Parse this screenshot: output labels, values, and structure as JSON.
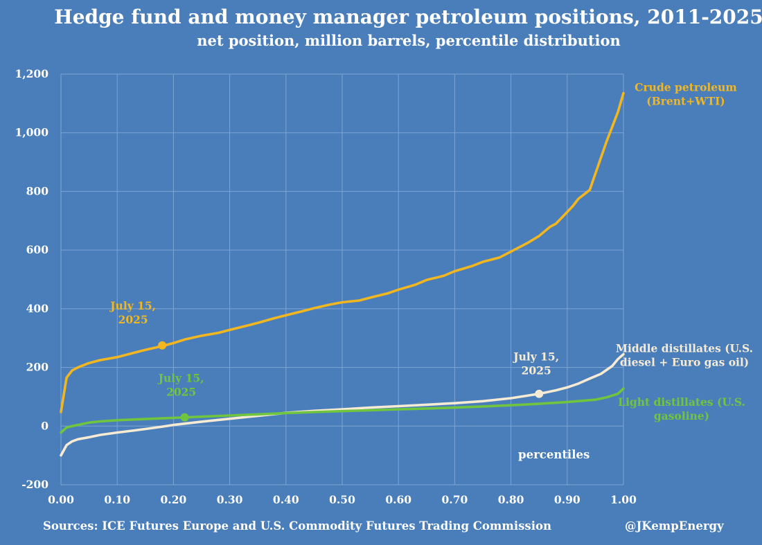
{
  "title": "Hedge fund and money manager petroleum positions, 2011-2025",
  "subtitle": "net position, million barrels, percentile distribution",
  "footer": {
    "sources": "Sources: ICE Futures Europe and U.S. Commodity Futures Trading Commission",
    "handle": "@JKempEnergy"
  },
  "colors": {
    "background": "#4a7ebb",
    "grid": "#7ea4d2",
    "crude": "#f2b71f",
    "middle": "#f7ecd3",
    "light": "#6fc53d",
    "text": "#ffffff"
  },
  "chart_data": {
    "type": "line",
    "title": "Hedge fund and money manager petroleum positions, 2011-2025",
    "subtitle": "net position, million barrels, percentile distribution",
    "xlabel": "percentiles",
    "ylabel": "",
    "xlim": [
      0,
      1
    ],
    "ylim": [
      -200,
      1200
    ],
    "xticks": [
      "0.00",
      "0.10",
      "0.20",
      "0.30",
      "0.40",
      "0.50",
      "0.60",
      "0.70",
      "0.80",
      "0.90",
      "1.00"
    ],
    "yticks": [
      "-200",
      "0",
      "200",
      "400",
      "600",
      "800",
      "1,000",
      "1,200"
    ],
    "grid": true,
    "series": [
      {
        "name": "Crude petroleum (Brent+WTI)",
        "label_lines": [
          "Crude petroleum",
          "(Brent+WTI)"
        ],
        "color_key": "crude",
        "x": [
          0.0,
          0.01,
          0.02,
          0.03,
          0.05,
          0.07,
          0.1,
          0.13,
          0.15,
          0.18,
          0.2,
          0.22,
          0.25,
          0.28,
          0.3,
          0.33,
          0.35,
          0.38,
          0.4,
          0.43,
          0.45,
          0.48,
          0.5,
          0.53,
          0.55,
          0.58,
          0.6,
          0.63,
          0.65,
          0.68,
          0.7,
          0.73,
          0.75,
          0.78,
          0.8,
          0.83,
          0.85,
          0.87,
          0.88,
          0.9,
          0.91,
          0.92,
          0.93,
          0.94,
          0.95,
          0.96,
          0.97,
          0.98,
          0.99,
          1.0
        ],
        "y": [
          48,
          165,
          190,
          200,
          215,
          225,
          235,
          250,
          260,
          273,
          283,
          295,
          308,
          318,
          328,
          342,
          352,
          368,
          378,
          392,
          402,
          415,
          422,
          428,
          438,
          452,
          465,
          482,
          498,
          512,
          528,
          545,
          560,
          575,
          595,
          625,
          648,
          680,
          690,
          730,
          750,
          775,
          790,
          805,
          860,
          915,
          970,
          1020,
          1070,
          1135
        ]
      },
      {
        "name": "Middle distillates (U.S. diesel + Euro gas oil)",
        "label_lines": [
          "Middle distillates (U.S.",
          "diesel + Euro gas oil)"
        ],
        "color_key": "middle",
        "x": [
          0.0,
          0.01,
          0.02,
          0.03,
          0.05,
          0.07,
          0.1,
          0.13,
          0.15,
          0.18,
          0.2,
          0.25,
          0.3,
          0.35,
          0.4,
          0.45,
          0.5,
          0.55,
          0.6,
          0.65,
          0.7,
          0.75,
          0.8,
          0.85,
          0.88,
          0.9,
          0.92,
          0.94,
          0.96,
          0.98,
          0.99,
          1.0
        ],
        "y": [
          -100,
          -65,
          -52,
          -45,
          -38,
          -30,
          -22,
          -15,
          -10,
          -2,
          4,
          15,
          25,
          35,
          45,
          52,
          57,
          63,
          68,
          73,
          78,
          85,
          95,
          110,
          122,
          132,
          145,
          162,
          178,
          205,
          228,
          245
        ]
      },
      {
        "name": "Light distillates (U.S. gasoline)",
        "label_lines": [
          "Light distillates (U.S.",
          "gasoline)"
        ],
        "color_key": "light",
        "x": [
          0.0,
          0.01,
          0.02,
          0.03,
          0.05,
          0.07,
          0.1,
          0.15,
          0.2,
          0.25,
          0.3,
          0.35,
          0.4,
          0.45,
          0.5,
          0.55,
          0.6,
          0.65,
          0.7,
          0.75,
          0.8,
          0.85,
          0.9,
          0.95,
          0.97,
          0.99,
          1.0
        ],
        "y": [
          -22,
          -5,
          0,
          4,
          12,
          16,
          20,
          24,
          28,
          32,
          36,
          40,
          44,
          48,
          51,
          54,
          57,
          60,
          63,
          67,
          71,
          76,
          82,
          90,
          98,
          110,
          128
        ]
      }
    ],
    "markers": [
      {
        "series": "Crude petroleum (Brent+WTI)",
        "label_lines": [
          "July 15,",
          "2025"
        ],
        "x": 0.18,
        "y": 275
      },
      {
        "series": "Light distillates (U.S. gasoline)",
        "label_lines": [
          "July 15,",
          "2025"
        ],
        "x": 0.22,
        "y": 30
      },
      {
        "series": "Middle distillates (U.S. diesel + Euro gas oil)",
        "label_lines": [
          "July 15,",
          "2025"
        ],
        "x": 0.85,
        "y": 110
      }
    ]
  }
}
